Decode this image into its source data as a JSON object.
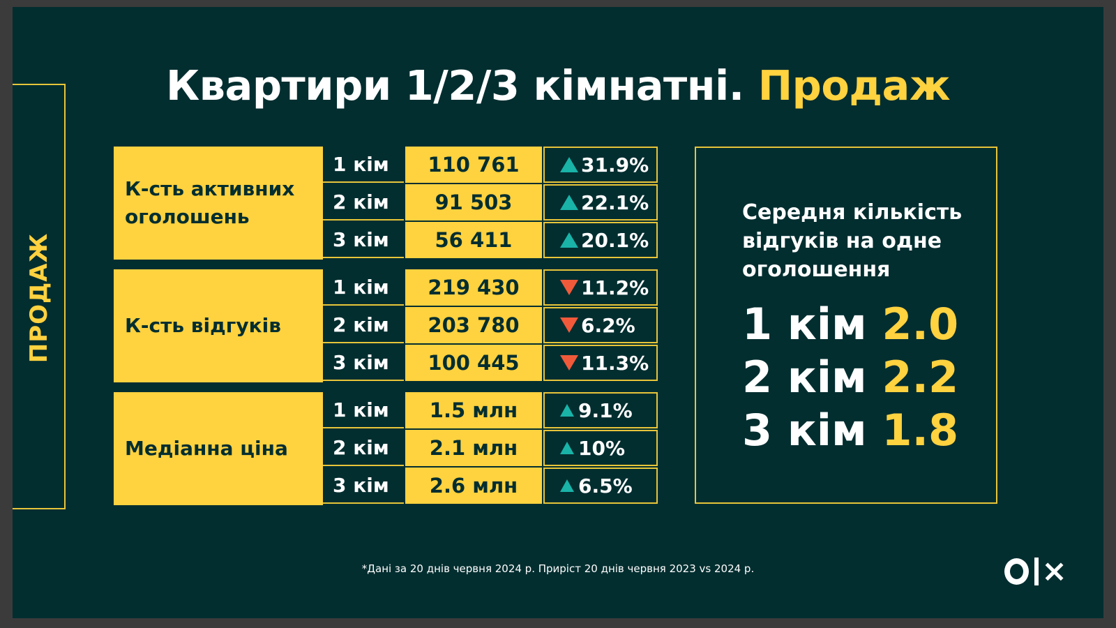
{
  "title": {
    "main": "Квартири 1/2/3 кімнатні.",
    "accent": "Продаж"
  },
  "side_label": "ПРОДАЖ",
  "groups": [
    {
      "label": "К-сть активних оголошень",
      "rows": [
        {
          "room": "1 кім",
          "value": "110 761",
          "change": "31.9%",
          "direction": "up"
        },
        {
          "room": "2 кім",
          "value": "91 503",
          "change": "22.1%",
          "direction": "up"
        },
        {
          "room": "3 кім",
          "value": "56 411",
          "change": "20.1%",
          "direction": "up"
        }
      ]
    },
    {
      "label": "К-сть відгуків",
      "rows": [
        {
          "room": "1 кім",
          "value": "219 430",
          "change": "11.2%",
          "direction": "down"
        },
        {
          "room": "2 кім",
          "value": "203 780",
          "change": "6.2%",
          "direction": "down"
        },
        {
          "room": "3 кім",
          "value": "100 445",
          "change": "11.3%",
          "direction": "down"
        }
      ]
    },
    {
      "label": "Медіанна ціна",
      "rows": [
        {
          "room": "1 кім",
          "value": "1.5 млн",
          "change": "9.1%",
          "direction": "up"
        },
        {
          "room": "2 кім",
          "value": "2.1 млн",
          "change": "10%",
          "direction": "up"
        },
        {
          "room": "3 кім",
          "value": "2.6 млн",
          "change": "6.5%",
          "direction": "up"
        }
      ]
    }
  ],
  "info": {
    "title": "Середня кількість відгуків на одне оголошення",
    "stats": [
      {
        "room": "1 кім",
        "value": "2.0"
      },
      {
        "room": "2 кім",
        "value": "2.2"
      },
      {
        "room": "3 кім",
        "value": "1.8"
      }
    ]
  },
  "footnote": "*Дані за 20 днів червня 2024 р. Приріст 20 днів червня 2023 vs 2024 р.",
  "logo": "olx",
  "colors": {
    "background": "#032e30",
    "accent": "#ffd23f",
    "up": "#19b3a8",
    "down": "#f05a3a"
  }
}
